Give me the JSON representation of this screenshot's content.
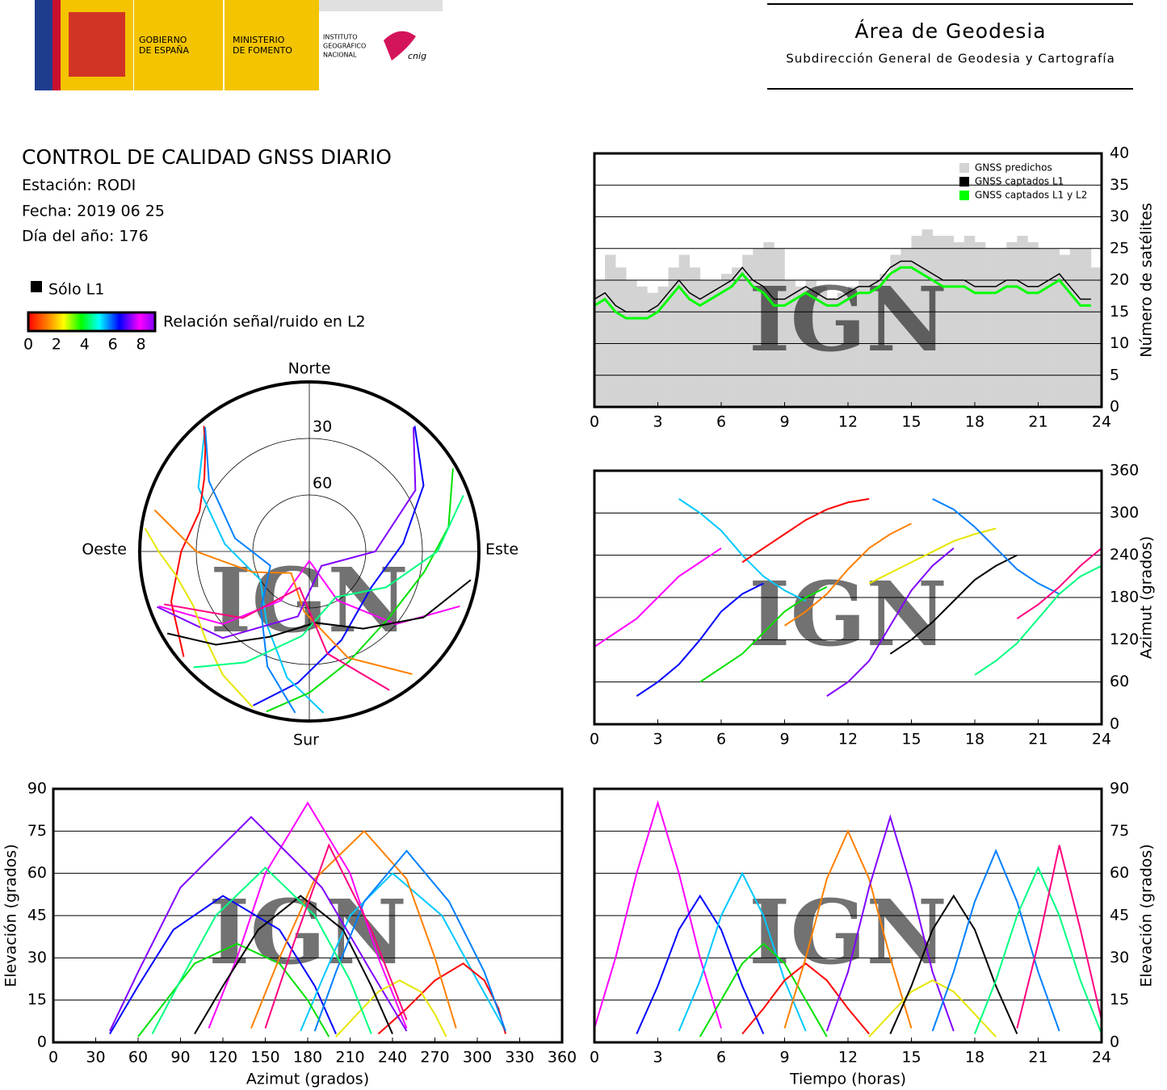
{
  "header": {
    "gobierno": [
      "GOBIERNO",
      "DE ESPAÑA"
    ],
    "ministerio": [
      "MINISTERIO",
      "DE FOMENTO"
    ],
    "instituto": [
      "INSTITUTO",
      "GEOGRÁFICO",
      "NACIONAL"
    ],
    "cnig": "cnig",
    "title": "Área de Geodesia",
    "subtitle": "Subdirección General de Geodesia y Cartografía"
  },
  "report": {
    "title": "CONTROL DE CALIDAD GNSS DIARIO",
    "station": "Estación: RODI",
    "date": "Fecha: 2019 06 25",
    "doy": "Día del año: 176"
  },
  "legend": {
    "l1": "Sólo L1",
    "snr": "Relación señal/ruido en L2",
    "snr_lim": [
      0,
      9
    ],
    "snr_ticks": [
      0,
      2,
      4,
      6,
      8
    ]
  },
  "watermark": "IGN",
  "satellites": [
    {
      "color": "#ff00ff",
      "t": [
        0,
        1,
        2,
        3,
        4,
        5,
        6
      ],
      "azimuth": [
        110,
        130,
        150,
        180,
        210,
        230,
        250
      ],
      "elevation": [
        5,
        30,
        60,
        85,
        60,
        30,
        5
      ]
    },
    {
      "color": "#0000ff",
      "t": [
        2,
        3,
        4,
        5,
        6,
        7,
        8
      ],
      "azimuth": [
        40,
        60,
        85,
        120,
        160,
        185,
        200
      ],
      "elevation": [
        3,
        20,
        40,
        52,
        40,
        20,
        3
      ]
    },
    {
      "color": "#00c8ff",
      "t": [
        4,
        5,
        6,
        7,
        8,
        9,
        10
      ],
      "azimuth": [
        320,
        300,
        275,
        240,
        210,
        190,
        175
      ],
      "elevation": [
        4,
        22,
        45,
        60,
        45,
        22,
        4
      ]
    },
    {
      "color": "#00e000",
      "t": [
        5,
        6,
        7,
        8,
        9,
        10,
        11
      ],
      "azimuth": [
        60,
        80,
        100,
        130,
        160,
        180,
        195
      ],
      "elevation": [
        2,
        15,
        28,
        35,
        28,
        15,
        2
      ]
    },
    {
      "color": "#ff0000",
      "t": [
        7,
        8,
        9,
        10,
        11,
        12,
        13
      ],
      "azimuth": [
        230,
        250,
        270,
        290,
        305,
        315,
        320
      ],
      "elevation": [
        3,
        12,
        22,
        28,
        22,
        12,
        3
      ]
    },
    {
      "color": "#ff8000",
      "t": [
        9,
        10,
        11,
        12,
        13,
        14,
        15
      ],
      "azimuth": [
        140,
        160,
        185,
        220,
        250,
        270,
        285
      ],
      "elevation": [
        5,
        30,
        58,
        75,
        58,
        30,
        5
      ]
    },
    {
      "color": "#8000ff",
      "t": [
        11,
        12,
        13,
        14,
        15,
        16,
        17
      ],
      "azimuth": [
        40,
        60,
        90,
        140,
        190,
        225,
        250
      ],
      "elevation": [
        4,
        25,
        55,
        80,
        55,
        25,
        4
      ]
    },
    {
      "color": "#e6e600",
      "t": [
        13,
        14,
        15,
        16,
        17,
        18,
        19
      ],
      "azimuth": [
        200,
        215,
        230,
        245,
        260,
        270,
        278
      ],
      "elevation": [
        2,
        10,
        18,
        22,
        18,
        10,
        2
      ]
    },
    {
      "color": "#000000",
      "t": [
        14,
        15,
        16,
        17,
        18,
        19,
        20
      ],
      "azimuth": [
        100,
        120,
        145,
        175,
        205,
        225,
        240
      ],
      "elevation": [
        3,
        20,
        40,
        52,
        40,
        20,
        3
      ]
    },
    {
      "color": "#0080ff",
      "t": [
        16,
        17,
        18,
        19,
        20,
        21,
        22
      ],
      "azimuth": [
        320,
        305,
        280,
        250,
        220,
        200,
        185
      ],
      "elevation": [
        4,
        25,
        50,
        68,
        50,
        25,
        4
      ]
    },
    {
      "color": "#00ff80",
      "t": [
        18,
        19,
        20,
        21,
        22,
        23,
        24
      ],
      "azimuth": [
        70,
        90,
        115,
        150,
        185,
        210,
        225
      ],
      "elevation": [
        3,
        22,
        45,
        62,
        45,
        22,
        3
      ]
    },
    {
      "color": "#ff0080",
      "t": [
        20,
        21,
        22,
        23,
        24
      ],
      "azimuth": [
        150,
        170,
        195,
        225,
        250
      ],
      "elevation": [
        5,
        35,
        70,
        40,
        8
      ]
    }
  ],
  "chart_data": [
    {
      "type": "step",
      "ylabel": "Número de satélites",
      "xlim": [
        0,
        24
      ],
      "xticks": [
        0,
        3,
        6,
        9,
        12,
        15,
        18,
        21,
        24
      ],
      "ylim": [
        0,
        40
      ],
      "yticks": [
        0,
        5,
        10,
        15,
        20,
        25,
        30,
        35,
        40
      ],
      "y_axis_side": "right",
      "grid": "y",
      "legend": "upper right",
      "step": 0.5,
      "x": [
        0,
        0.5,
        1,
        1.5,
        2,
        2.5,
        3,
        3.5,
        4,
        4.5,
        5,
        5.5,
        6,
        6.5,
        7,
        7.5,
        8,
        8.5,
        9,
        9.5,
        10,
        10.5,
        11,
        11.5,
        12,
        12.5,
        13,
        13.5,
        14,
        14.5,
        15,
        15.5,
        16,
        16.5,
        17,
        17.5,
        18,
        18.5,
        19,
        19.5,
        20,
        20.5,
        21,
        21.5,
        22,
        22.5,
        23,
        23.5
      ],
      "series": [
        {
          "name": "GNSS predichos",
          "color": "#d3d3d3",
          "values": [
            20,
            24,
            22,
            20,
            19,
            18,
            19,
            22,
            24,
            22,
            20,
            20,
            21,
            22,
            24,
            25,
            26,
            25,
            20,
            19,
            20,
            19,
            17,
            18,
            19,
            20,
            20,
            21,
            24,
            25,
            27,
            28,
            27,
            27,
            26,
            27,
            26,
            25,
            25,
            26,
            27,
            26,
            25,
            25,
            24,
            25,
            25,
            22
          ]
        },
        {
          "name": "GNSS captados L1",
          "color": "#000000",
          "values": [
            17,
            18,
            16,
            15,
            15,
            15,
            16,
            18,
            20,
            18,
            17,
            18,
            19,
            20,
            22,
            20,
            19,
            17,
            17,
            18,
            19,
            18,
            17,
            17,
            18,
            19,
            19,
            20,
            22,
            23,
            23,
            22,
            21,
            20,
            20,
            20,
            19,
            19,
            19,
            20,
            20,
            19,
            19,
            20,
            21,
            19,
            17,
            17
          ]
        },
        {
          "name": "GNSS captados L1 y L2",
          "color": "#00ff00",
          "values": [
            16,
            17,
            15,
            14,
            14,
            14,
            15,
            17,
            19,
            17,
            16,
            17,
            18,
            19,
            21,
            19,
            18,
            16,
            16,
            17,
            18,
            17,
            16,
            16,
            17,
            18,
            18,
            19,
            21,
            22,
            22,
            21,
            20,
            19,
            19,
            19,
            18,
            18,
            18,
            19,
            19,
            18,
            18,
            19,
            20,
            18,
            16,
            16
          ]
        }
      ]
    },
    {
      "type": "track",
      "x_field": "t",
      "y_field": "azimuth",
      "ylabel": "Azimut (grados)",
      "xlim": [
        0,
        24
      ],
      "xticks": [
        0,
        3,
        6,
        9,
        12,
        15,
        18,
        21,
        24
      ],
      "ylim": [
        0,
        360
      ],
      "yticks": [
        0,
        60,
        120,
        180,
        240,
        300,
        360
      ],
      "y_axis_side": "right",
      "grid": "y"
    },
    {
      "type": "skyplot",
      "north": "Norte",
      "south": "Sur",
      "east": "Este",
      "west": "Oeste",
      "rlim": [
        90,
        0
      ],
      "rticks": [
        30,
        60
      ]
    },
    {
      "type": "track",
      "x_field": "azimuth",
      "y_field": "elevation",
      "xlabel": "Azimut (grados)",
      "ylabel": "Elevación (grados)",
      "xlim": [
        0,
        360
      ],
      "xticks": [
        0,
        30,
        60,
        90,
        120,
        150,
        180,
        210,
        240,
        270,
        300,
        330,
        360
      ],
      "ylim": [
        0,
        90
      ],
      "yticks": [
        0,
        15,
        30,
        45,
        60,
        75,
        90
      ],
      "y_axis_side": "left",
      "grid": "y"
    },
    {
      "type": "track",
      "x_field": "t",
      "y_field": "elevation",
      "xlabel": "Tiempo (horas)",
      "ylabel": "Elevación (grados)",
      "xlim": [
        0,
        24
      ],
      "xticks": [
        0,
        3,
        6,
        9,
        12,
        15,
        18,
        21,
        24
      ],
      "ylim": [
        0,
        90
      ],
      "yticks": [
        0,
        15,
        30,
        45,
        60,
        75,
        90
      ],
      "y_axis_side": "right",
      "grid": "y"
    }
  ]
}
